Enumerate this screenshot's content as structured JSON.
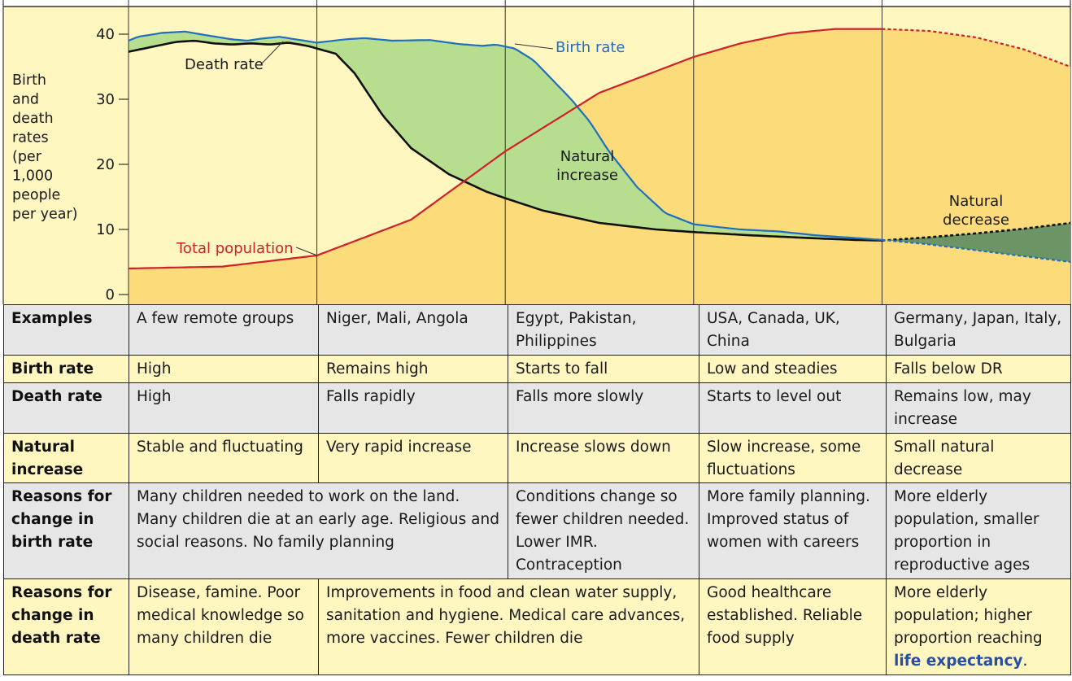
{
  "chart_data": {
    "type": "line",
    "ylabel": "Birth and death rates (per 1,000 people per year)",
    "ylabel_lines": [
      "Birth",
      "and",
      "death",
      "rates",
      "(per",
      "1,000",
      "people",
      "per year)"
    ],
    "yticks": [
      0,
      10,
      20,
      30,
      40
    ],
    "ylim": [
      0,
      41.5
    ],
    "stages": 5,
    "series": [
      {
        "name": "Birth rate",
        "color": "#1f6fc0",
        "x": [
          0,
          0.05,
          0.18,
          0.3,
          0.38,
          0.55,
          0.63,
          0.7,
          0.8,
          1.0,
          1.15,
          1.25,
          1.4,
          1.6,
          1.75,
          1.88,
          1.95,
          2.05,
          2.15,
          2.25,
          2.35,
          2.45,
          2.55,
          2.7,
          2.85,
          3.0,
          3.15,
          3.25,
          3.45,
          3.65,
          3.85,
          4.0,
          4.25,
          4.5,
          4.75,
          5.0
        ],
        "y": [
          39.0,
          39.6,
          40.2,
          40.4,
          40.0,
          39.2,
          39.0,
          39.3,
          39.6,
          38.7,
          39.2,
          39.4,
          39.0,
          39.1,
          38.5,
          38.2,
          38.4,
          37.8,
          36.0,
          33.0,
          30.0,
          26.5,
          22.0,
          16.5,
          12.5,
          10.8,
          10.3,
          10.0,
          9.7,
          9.1,
          8.7,
          8.4,
          7.7,
          6.8,
          5.9,
          5.0
        ]
      },
      {
        "name": "Death rate",
        "color": "#111111",
        "x": [
          0,
          0.15,
          0.25,
          0.35,
          0.45,
          0.55,
          0.65,
          0.75,
          0.85,
          0.95,
          1.0,
          1.1,
          1.2,
          1.35,
          1.5,
          1.7,
          1.9,
          2.0,
          2.2,
          2.5,
          2.8,
          3.0,
          3.3,
          3.6,
          3.85,
          4.0,
          4.25,
          4.5,
          4.75,
          5.0
        ],
        "y": [
          37.3,
          38.2,
          38.8,
          39.0,
          38.6,
          38.4,
          38.6,
          38.4,
          38.7,
          38.2,
          37.8,
          37.0,
          34.0,
          27.5,
          22.5,
          18.5,
          15.8,
          14.8,
          12.9,
          11.0,
          10.0,
          9.6,
          9.1,
          8.7,
          8.4,
          8.3,
          8.8,
          9.4,
          10.1,
          11.0
        ]
      },
      {
        "name": "Total population",
        "color": "#d0202a",
        "x": [
          0,
          0.5,
          1.0,
          1.5,
          2.0,
          2.5,
          3.0,
          3.25,
          3.5,
          3.75,
          4.0,
          4.25,
          4.5,
          4.75,
          5.0
        ],
        "y": [
          4.0,
          4.3,
          6.0,
          11.5,
          22.0,
          31.0,
          36.5,
          38.6,
          40.1,
          40.8,
          40.8,
          40.5,
          39.5,
          37.7,
          35.0
        ]
      }
    ],
    "annotations": [
      "Birth rate",
      "Death rate",
      "Total population",
      "Natural increase",
      "Natural decrease"
    ]
  },
  "labels": {
    "birth_rate": "Birth rate",
    "death_rate": "Death rate",
    "total_population": "Total population",
    "natural_increase_1": "Natural",
    "natural_increase_2": "increase",
    "natural_decrease_1": "Natural",
    "natural_decrease_2": "decrease"
  },
  "colors": {
    "stage_bg": "#fff6c0",
    "population_fill": "#fbdb7a",
    "increase_fill": "#b7de8e",
    "decrease_fill": "#6c9465"
  },
  "table": {
    "examples": {
      "label": "Examples",
      "cells": [
        "A few remote groups",
        "Niger, Mali, Angola",
        "Egypt, Pakistan, Philippines",
        "USA, Canada, UK, China",
        "Germany, Japan, Italy, Bulgaria"
      ]
    },
    "birth_rate": {
      "label": "Birth rate",
      "cells": [
        "High",
        "Remains high",
        "Starts to fall",
        "Low and steadies",
        "Falls below DR"
      ]
    },
    "death_rate": {
      "label": "Death rate",
      "cells": [
        "High",
        "Falls rapidly",
        "Falls more slowly",
        "Starts to level out",
        "Remains low, may increase"
      ]
    },
    "natural_increase": {
      "label": "Natural increase",
      "cells": [
        "Stable and fluctuating",
        "Very rapid increase",
        "Increase slows down",
        "Slow increase, some fluctuations",
        "Small natural decrease"
      ]
    },
    "reasons_birth": {
      "label": "Reasons for change in birth rate",
      "stage12": "Many children needed to work on the land. Many children die at an early age. Religious and social reasons. No family planning",
      "stage3": "Conditions change so fewer children needed. Lower IMR. Contraception",
      "stage4": "More family planning. Improved status of women with careers",
      "stage5": "More elderly population, smaller proportion in reproductive ages"
    },
    "reasons_death": {
      "label": "Reasons for change in death rate",
      "stage1": "Disease, famine. Poor medical knowledge so many children die",
      "stage23": "Improvements in food and clean water supply, sanitation and hygiene. Medical care advances, more vaccines. Fewer children die",
      "stage4": "Good healthcare established. Reliable food supply",
      "stage5_text": "More elderly population; higher proportion reaching ",
      "stage5_link": "life expectancy",
      "stage5_end": "."
    }
  }
}
